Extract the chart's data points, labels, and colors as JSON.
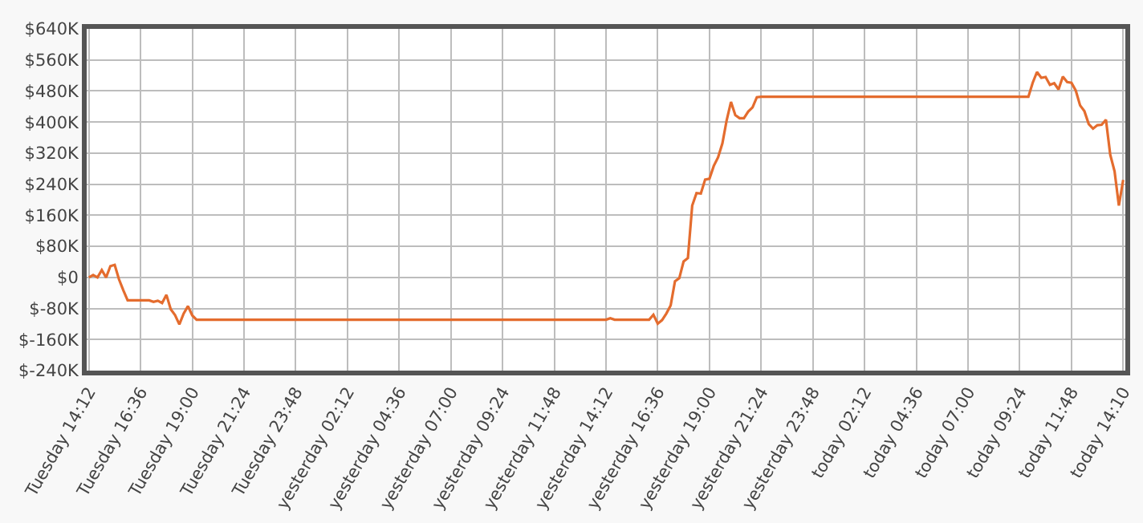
{
  "chart_data": {
    "type": "line",
    "categories": [
      "Tuesday 14:12",
      null,
      null,
      null,
      null,
      null,
      null,
      null,
      null,
      null,
      null,
      null,
      "Tuesday 16:36",
      null,
      null,
      null,
      null,
      null,
      null,
      null,
      null,
      null,
      null,
      null,
      "Tuesday 19:00",
      null,
      null,
      null,
      null,
      null,
      null,
      null,
      null,
      null,
      null,
      null,
      "Tuesday 21:24",
      null,
      null,
      null,
      null,
      null,
      null,
      null,
      null,
      null,
      null,
      null,
      "Tuesday 23:48",
      null,
      null,
      null,
      null,
      null,
      null,
      null,
      null,
      null,
      null,
      null,
      "yesterday 02:12",
      null,
      null,
      null,
      null,
      null,
      null,
      null,
      null,
      null,
      null,
      null,
      "yesterday 04:36",
      null,
      null,
      null,
      null,
      null,
      null,
      null,
      null,
      null,
      null,
      null,
      "yesterday 07:00",
      null,
      null,
      null,
      null,
      null,
      null,
      null,
      null,
      null,
      null,
      null,
      "yesterday 09:24",
      null,
      null,
      null,
      null,
      null,
      null,
      null,
      null,
      null,
      null,
      null,
      "yesterday 11:48",
      null,
      null,
      null,
      null,
      null,
      null,
      null,
      null,
      null,
      null,
      null,
      "yesterday 14:12",
      null,
      null,
      null,
      null,
      null,
      null,
      null,
      null,
      null,
      null,
      null,
      "yesterday 16:36",
      null,
      null,
      null,
      null,
      null,
      null,
      null,
      null,
      null,
      null,
      null,
      "yesterday 19:00",
      null,
      null,
      null,
      null,
      null,
      null,
      null,
      null,
      null,
      null,
      null,
      "yesterday 21:24",
      null,
      null,
      null,
      null,
      null,
      null,
      null,
      null,
      null,
      null,
      null,
      "yesterday 23:48",
      null,
      null,
      null,
      null,
      null,
      null,
      null,
      null,
      null,
      null,
      null,
      "today 02:12",
      null,
      null,
      null,
      null,
      null,
      null,
      null,
      null,
      null,
      null,
      null,
      "today 04:36",
      null,
      null,
      null,
      null,
      null,
      null,
      null,
      null,
      null,
      null,
      null,
      "today 07:00",
      null,
      null,
      null,
      null,
      null,
      null,
      null,
      null,
      null,
      null,
      null,
      "today 09:24",
      null,
      null,
      null,
      null,
      null,
      null,
      null,
      null,
      null,
      null,
      null,
      "today 11:48",
      null,
      null,
      null,
      null,
      null,
      null,
      null,
      null,
      null,
      null,
      null,
      "today 14:10"
    ],
    "series": [
      {
        "color": "#e46c2e",
        "values": [
          0,
          6,
          0,
          19,
          0,
          29,
          32,
          -5,
          -33,
          -59,
          -59,
          -59,
          -59,
          -59,
          -59,
          -63,
          -60,
          -66,
          -45,
          -82,
          -97,
          -121,
          -93,
          -74,
          -98,
          -109,
          -109,
          -109,
          -109,
          -109,
          -109,
          -109,
          -109,
          -109,
          -109,
          -109,
          -109,
          -109,
          -109,
          -109,
          -109,
          -109,
          -109,
          -109,
          -109,
          -109,
          -109,
          -109,
          -109,
          -109,
          -109,
          -109,
          -109,
          -109,
          -109,
          -109,
          -109,
          -109,
          -109,
          -109,
          -109,
          -109,
          -109,
          -109,
          -109,
          -109,
          -109,
          -109,
          -109,
          -109,
          -109,
          -109,
          -109,
          -109,
          -109,
          -109,
          -109,
          -109,
          -109,
          -109,
          -109,
          -109,
          -109,
          -109,
          -109,
          -109,
          -109,
          -109,
          -109,
          -109,
          -109,
          -109,
          -109,
          -109,
          -109,
          -109,
          -109,
          -109,
          -109,
          -109,
          -109,
          -109,
          -109,
          -109,
          -109,
          -109,
          -109,
          -109,
          -109,
          -109,
          -109,
          -109,
          -109,
          -109,
          -109,
          -109,
          -109,
          -109,
          -109,
          -109,
          -109,
          -105,
          -109,
          -109,
          -109,
          -109,
          -109,
          -109,
          -109,
          -109,
          -109,
          -96,
          -119,
          -110,
          -93,
          -72,
          -10,
          -2,
          41,
          50,
          185,
          217,
          216,
          252,
          254,
          287,
          309,
          345,
          405,
          452,
          418,
          410,
          410,
          427,
          438,
          464,
          465,
          465,
          465,
          465,
          465,
          465,
          465,
          465,
          465,
          465,
          465,
          465,
          465,
          465,
          465,
          465,
          465,
          465,
          465,
          465,
          465,
          465,
          465,
          465,
          465,
          465,
          465,
          465,
          465,
          465,
          465,
          465,
          465,
          465,
          465,
          465,
          465,
          465,
          465,
          465,
          465,
          465,
          465,
          465,
          465,
          465,
          465,
          465,
          465,
          465,
          465,
          465,
          465,
          465,
          465,
          465,
          465,
          465,
          465,
          465,
          465,
          465,
          465,
          501,
          529,
          514,
          516,
          496,
          500,
          484,
          517,
          503,
          501,
          481,
          443,
          428,
          395,
          383,
          392,
          393,
          406,
          316,
          273,
          185,
          251
        ]
      }
    ],
    "ylim": [
      -240,
      640
    ],
    "yticks": [
      {
        "value": -240,
        "label": "$-240K"
      },
      {
        "value": -160,
        "label": "$-160K"
      },
      {
        "value": -80,
        "label": "$-80K"
      },
      {
        "value": 0,
        "label": "$0"
      },
      {
        "value": 80,
        "label": "$80K"
      },
      {
        "value": 160,
        "label": "$160K"
      },
      {
        "value": 240,
        "label": "$240K"
      },
      {
        "value": 320,
        "label": "$320K"
      },
      {
        "value": 400,
        "label": "$400K"
      },
      {
        "value": 480,
        "label": "$480K"
      },
      {
        "value": 560,
        "label": "$560K"
      },
      {
        "value": 640,
        "label": "$640K"
      }
    ],
    "grid": true,
    "marker": "none",
    "line_style": "solid"
  }
}
